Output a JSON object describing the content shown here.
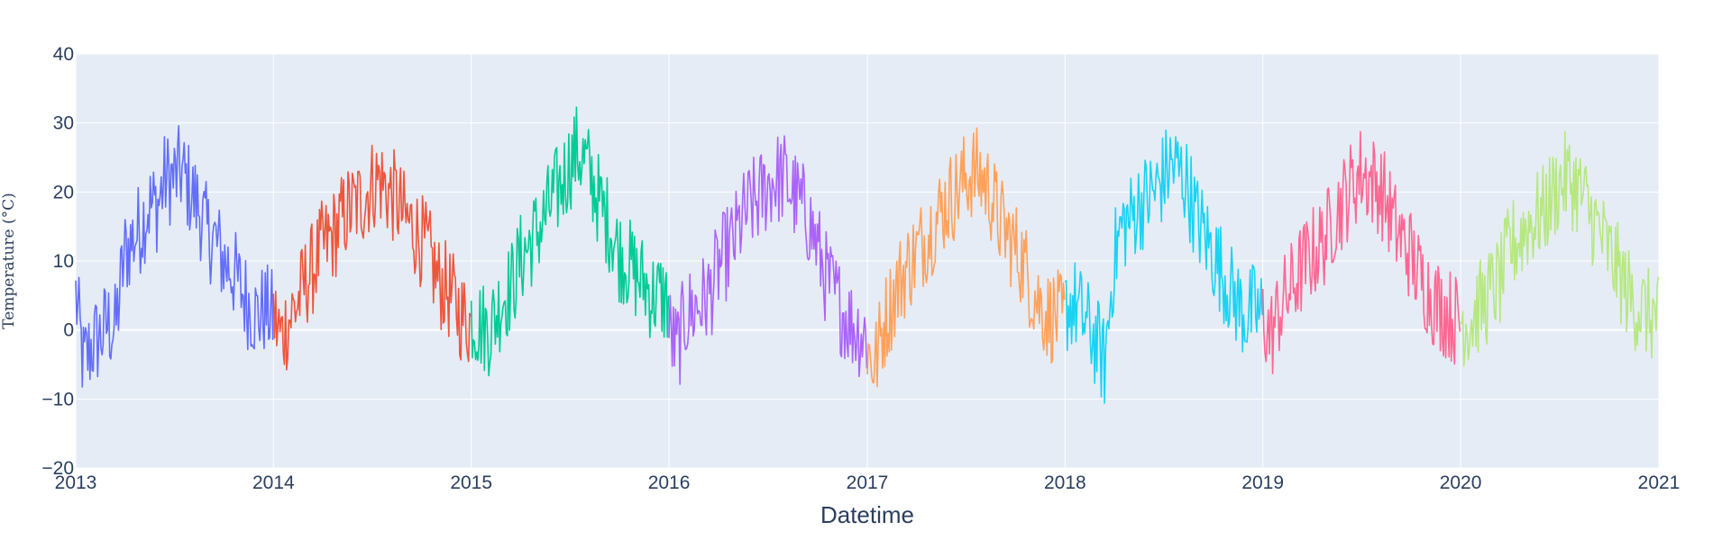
{
  "chart_data": {
    "type": "line",
    "title": "",
    "xlabel": "Datetime",
    "ylabel": "Temperature (°C)",
    "xlim": [
      "2013-01-01",
      "2021-01-01"
    ],
    "ylim": [
      -20,
      40
    ],
    "grid": true,
    "legend": "none",
    "x_tick_labels": [
      "2013",
      "2014",
      "2015",
      "2016",
      "2017",
      "2018",
      "2019",
      "2020",
      "2021"
    ],
    "y_tick_labels": [
      "−20",
      "−10",
      "0",
      "10",
      "20",
      "30",
      "40"
    ],
    "y_ticks": [
      -20,
      -10,
      0,
      10,
      20,
      30,
      40
    ],
    "x_ticks": [
      "2013-01-01",
      "2014-01-01",
      "2015-01-01",
      "2016-01-01",
      "2017-01-01",
      "2018-01-01",
      "2019-01-01",
      "2020-01-01",
      "2021-01-01"
    ],
    "series": [
      {
        "color": "#636efa",
        "x": [
          "2013-01-01",
          "2013-01-15",
          "2013-02-01",
          "2013-02-15",
          "2013-03-01",
          "2013-03-15",
          "2013-04-01",
          "2013-04-15",
          "2013-05-01",
          "2013-05-15",
          "2013-06-01",
          "2013-06-15",
          "2013-07-01",
          "2013-07-15",
          "2013-08-01",
          "2013-08-15",
          "2013-09-01",
          "2013-09-15",
          "2013-10-01",
          "2013-10-15",
          "2013-11-01",
          "2013-11-15",
          "2013-12-01",
          "2013-12-15",
          "2013-12-31"
        ],
        "y": [
          5,
          -5,
          -2,
          -1,
          1,
          0,
          11,
          13,
          15,
          18,
          18,
          22,
          22,
          23,
          20,
          18,
          14,
          13,
          10,
          9,
          6,
          4,
          2,
          3,
          2
        ]
      },
      {
        "color": "#ef553b",
        "x": [
          "2014-01-01",
          "2014-01-15",
          "2014-02-01",
          "2014-02-15",
          "2014-03-01",
          "2014-03-15",
          "2014-04-01",
          "2014-04-15",
          "2014-05-01",
          "2014-05-15",
          "2014-06-01",
          "2014-06-15",
          "2014-07-01",
          "2014-07-15",
          "2014-08-01",
          "2014-08-15",
          "2014-09-01",
          "2014-09-15",
          "2014-10-01",
          "2014-10-15",
          "2014-11-01",
          "2014-11-15",
          "2014-12-01",
          "2014-12-15",
          "2014-12-31"
        ],
        "y": [
          2,
          -1,
          2,
          4,
          7,
          9,
          12,
          13,
          15,
          17,
          18,
          19,
          21,
          22,
          20,
          19,
          16,
          15,
          13,
          11,
          7,
          6,
          4,
          2,
          1
        ]
      },
      {
        "color": "#00cc96",
        "x": [
          "2015-01-01",
          "2015-01-15",
          "2015-02-01",
          "2015-02-15",
          "2015-03-01",
          "2015-03-15",
          "2015-04-01",
          "2015-04-15",
          "2015-05-01",
          "2015-05-15",
          "2015-06-01",
          "2015-06-15",
          "2015-07-01",
          "2015-07-15",
          "2015-08-01",
          "2015-08-15",
          "2015-09-01",
          "2015-09-15",
          "2015-10-01",
          "2015-10-15",
          "2015-11-01",
          "2015-11-15",
          "2015-12-01",
          "2015-12-15",
          "2015-12-31"
        ],
        "y": [
          2,
          1,
          0,
          2,
          5,
          6,
          10,
          12,
          14,
          16,
          19,
          21,
          24,
          26,
          24,
          21,
          17,
          15,
          11,
          10,
          8,
          7,
          5,
          5,
          4
        ]
      },
      {
        "color": "#ab63fa",
        "x": [
          "2016-01-01",
          "2016-01-15",
          "2016-02-01",
          "2016-02-15",
          "2016-03-01",
          "2016-03-15",
          "2016-04-01",
          "2016-04-15",
          "2016-05-01",
          "2016-05-15",
          "2016-06-01",
          "2016-06-15",
          "2016-07-01",
          "2016-07-15",
          "2016-08-01",
          "2016-08-15",
          "2016-09-01",
          "2016-09-15",
          "2016-10-01",
          "2016-10-15",
          "2016-11-01",
          "2016-11-15",
          "2016-12-01",
          "2016-12-15",
          "2016-12-31"
        ],
        "y": [
          0,
          -3,
          2,
          3,
          4,
          5,
          9,
          11,
          13,
          16,
          18,
          19,
          21,
          22,
          22,
          20,
          18,
          16,
          12,
          8,
          5,
          3,
          1,
          0,
          -1
        ]
      },
      {
        "color": "#ffa15a",
        "x": [
          "2017-01-01",
          "2017-01-15",
          "2017-02-01",
          "2017-02-15",
          "2017-03-01",
          "2017-03-15",
          "2017-04-01",
          "2017-04-15",
          "2017-05-01",
          "2017-05-15",
          "2017-06-01",
          "2017-06-15",
          "2017-07-01",
          "2017-07-15",
          "2017-08-01",
          "2017-08-15",
          "2017-09-01",
          "2017-09-15",
          "2017-10-01",
          "2017-10-15",
          "2017-11-01",
          "2017-11-15",
          "2017-12-01",
          "2017-12-15",
          "2017-12-31"
        ],
        "y": [
          -3,
          -5,
          1,
          4,
          7,
          9,
          11,
          13,
          15,
          17,
          19,
          20,
          22,
          23,
          22,
          20,
          16,
          14,
          12,
          10,
          6,
          4,
          2,
          2,
          1
        ]
      },
      {
        "color": "#19d3f3",
        "x": [
          "2018-01-01",
          "2018-01-15",
          "2018-02-01",
          "2018-02-15",
          "2018-03-01",
          "2018-03-15",
          "2018-04-01",
          "2018-04-15",
          "2018-05-01",
          "2018-05-15",
          "2018-06-01",
          "2018-06-15",
          "2018-07-01",
          "2018-07-15",
          "2018-08-01",
          "2018-08-15",
          "2018-09-01",
          "2018-09-15",
          "2018-10-01",
          "2018-10-15",
          "2018-11-01",
          "2018-11-15",
          "2018-12-01",
          "2018-12-15",
          "2018-12-31"
        ],
        "y": [
          3,
          4,
          2,
          0,
          -2,
          -5,
          10,
          15,
          16,
          18,
          19,
          20,
          22,
          24,
          23,
          21,
          16,
          14,
          11,
          9,
          6,
          4,
          2,
          3,
          2
        ]
      },
      {
        "color": "#ff6692",
        "x": [
          "2019-01-01",
          "2019-01-15",
          "2019-02-01",
          "2019-02-15",
          "2019-03-01",
          "2019-03-15",
          "2019-04-01",
          "2019-04-15",
          "2019-05-01",
          "2019-05-15",
          "2019-06-01",
          "2019-06-15",
          "2019-07-01",
          "2019-07-15",
          "2019-08-01",
          "2019-08-15",
          "2019-09-01",
          "2019-09-15",
          "2019-10-01",
          "2019-10-15",
          "2019-11-01",
          "2019-11-15",
          "2019-12-01",
          "2019-12-15",
          "2019-12-31"
        ],
        "y": [
          2,
          -1,
          3,
          5,
          7,
          9,
          11,
          12,
          14,
          17,
          19,
          21,
          23,
          22,
          21,
          19,
          15,
          13,
          11,
          8,
          6,
          4,
          3,
          2,
          1
        ]
      },
      {
        "color": "#b6e880",
        "x": [
          "2020-01-01",
          "2020-01-15",
          "2020-02-01",
          "2020-02-15",
          "2020-03-01",
          "2020-03-15",
          "2020-04-01",
          "2020-04-15",
          "2020-05-01",
          "2020-05-15",
          "2020-06-01",
          "2020-06-15",
          "2020-07-01",
          "2020-07-15",
          "2020-08-01",
          "2020-08-15",
          "2020-09-01",
          "2020-09-15",
          "2020-10-01",
          "2020-10-15",
          "2020-11-01",
          "2020-11-15",
          "2020-12-01",
          "2020-12-15",
          "2020-12-31"
        ],
        "y": [
          2,
          1,
          3,
          4,
          6,
          7,
          12,
          13,
          15,
          16,
          17,
          19,
          21,
          22,
          21,
          19,
          16,
          14,
          11,
          9,
          6,
          4,
          3,
          2,
          2
        ]
      }
    ]
  }
}
